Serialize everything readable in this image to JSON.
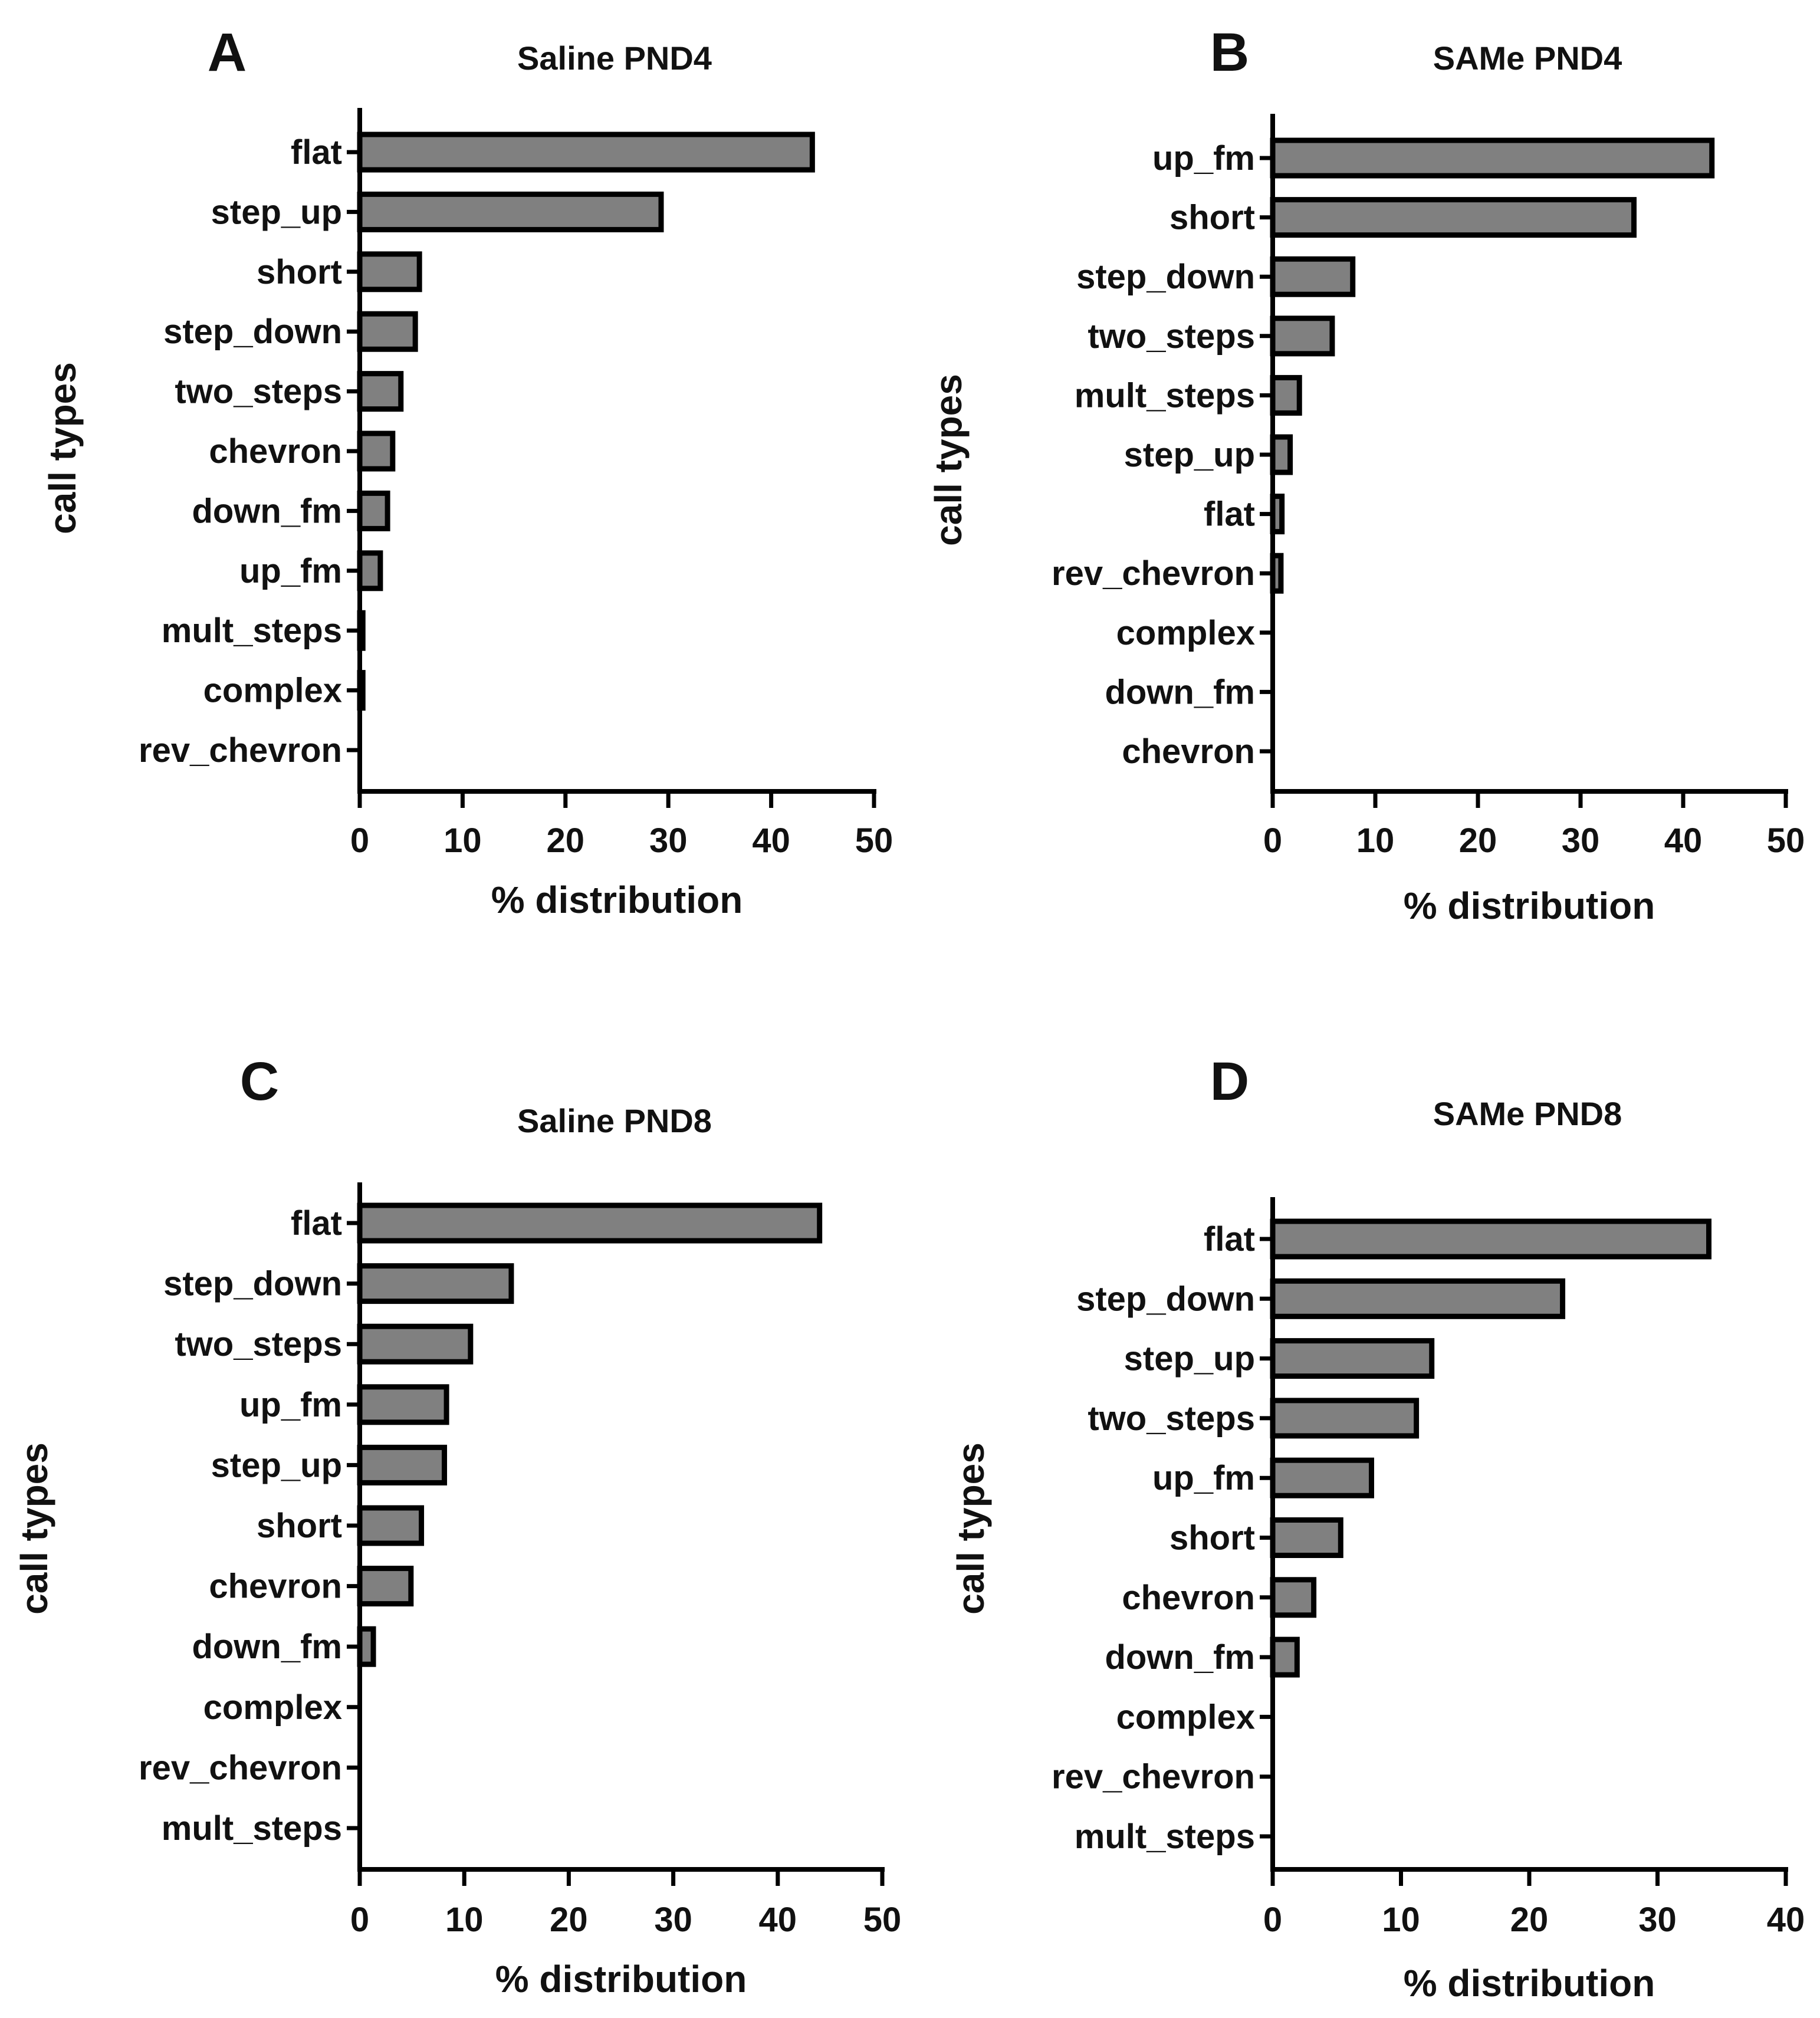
{
  "chart_data": [
    {
      "type": "bar",
      "orientation": "horizontal",
      "panel_letter": "A",
      "title": "Saline PND4",
      "xlabel": "% distribution",
      "ylabel": "call types",
      "xlim": [
        0,
        50
      ],
      "xticks": [
        0,
        10,
        20,
        30,
        40,
        50
      ],
      "categories": [
        "flat",
        "step_up",
        "short",
        "step_down",
        "two_steps",
        "chevron",
        "down_fm",
        "up_fm",
        "mult_steps",
        "complex",
        "rev_chevron"
      ],
      "values": [
        44,
        29.3,
        5.8,
        5.4,
        4,
        3.2,
        2.7,
        2,
        0.3,
        0.3,
        0
      ],
      "bar_color": "#808080",
      "grid": false,
      "legend": "none"
    },
    {
      "type": "bar",
      "orientation": "horizontal",
      "panel_letter": "B",
      "title": "SAMe PND4",
      "xlabel": "% distribution",
      "ylabel": "call types",
      "xlim": [
        0,
        50
      ],
      "xticks": [
        0,
        10,
        20,
        30,
        40,
        50
      ],
      "categories": [
        "up_fm",
        "short",
        "step_down",
        "two_steps",
        "mult_steps",
        "step_up",
        "flat",
        "rev_chevron",
        "complex",
        "down_fm",
        "chevron"
      ],
      "values": [
        42.8,
        35.2,
        7.8,
        5.8,
        2.6,
        1.7,
        0.9,
        0.8,
        0,
        0,
        0
      ],
      "bar_color": "#808080",
      "grid": false,
      "legend": "none"
    },
    {
      "type": "bar",
      "orientation": "horizontal",
      "panel_letter": "C",
      "title": "Saline PND8",
      "xlabel": "% distribution",
      "ylabel": "call types",
      "xlim": [
        0,
        50
      ],
      "xticks": [
        0,
        10,
        20,
        30,
        40,
        50
      ],
      "categories": [
        "flat",
        "step_down",
        "two_steps",
        "up_fm",
        "step_up",
        "short",
        "chevron",
        "down_fm",
        "complex",
        "rev_chevron",
        "mult_steps"
      ],
      "values": [
        44,
        14.5,
        10.6,
        8.3,
        8.1,
        5.9,
        4.9,
        1.3,
        0,
        0,
        0
      ],
      "bar_color": "#808080",
      "grid": false,
      "legend": "none"
    },
    {
      "type": "bar",
      "orientation": "horizontal",
      "panel_letter": "D",
      "title": "SAMe PND8",
      "xlabel": "% distribution",
      "ylabel": "call types",
      "xlim": [
        0,
        40
      ],
      "xticks": [
        0,
        10,
        20,
        30,
        40
      ],
      "categories": [
        "flat",
        "step_down",
        "step_up",
        "two_steps",
        "up_fm",
        "short",
        "chevron",
        "down_fm",
        "complex",
        "rev_chevron",
        "mult_steps"
      ],
      "values": [
        34,
        22.6,
        12.4,
        11.2,
        7.7,
        5.3,
        3.2,
        1.9,
        0,
        0,
        0
      ],
      "bar_color": "#808080",
      "grid": false,
      "legend": "none"
    }
  ]
}
